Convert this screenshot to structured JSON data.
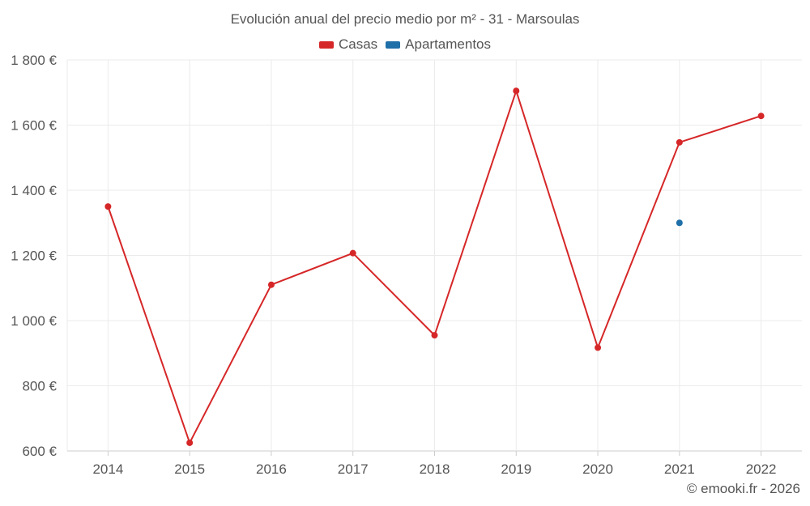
{
  "colors": {
    "casas": "#d62728",
    "apartamentos": "#1f6fa8",
    "grid": "#ebebeb",
    "axis": "#cccccc",
    "text": "#555555"
  },
  "chart_data": {
    "type": "line",
    "title": "Evolución anual del precio medio por m² - 31 - Marsoulas",
    "categories": [
      "2014",
      "2015",
      "2016",
      "2017",
      "2018",
      "2019",
      "2020",
      "2021",
      "2022"
    ],
    "series": [
      {
        "name": "Casas",
        "color": "#d62728",
        "values": [
          1350,
          625,
          1110,
          1207,
          955,
          1705,
          917,
          1547,
          1628
        ]
      },
      {
        "name": "Apartamentos",
        "color": "#1f6fa8",
        "values": [
          null,
          null,
          null,
          null,
          null,
          null,
          null,
          1300,
          null
        ]
      }
    ],
    "ylim": [
      600,
      1800
    ],
    "yticks": [
      600,
      800,
      1000,
      1200,
      1400,
      1600,
      1800
    ],
    "ytick_labels": [
      "600 €",
      "800 €",
      "1 000 €",
      "1 200 €",
      "1 400 €",
      "1 600 €",
      "1 800 €"
    ],
    "xlabel": "",
    "ylabel": "",
    "legend_position": "top-center",
    "grid": true
  },
  "credit": "© emooki.fr - 2026"
}
